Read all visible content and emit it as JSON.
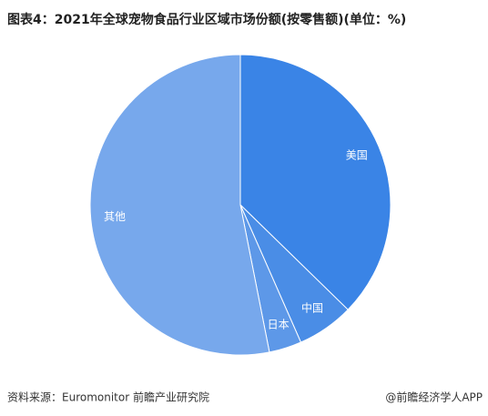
{
  "chart_data": {
    "type": "pie",
    "title": "图表4：2021年全球宠物食品行业区域市场份额(按零售额)(单位：%)",
    "categories": [
      "美国",
      "中国",
      "日本",
      "其他"
    ],
    "values": [
      37.3,
      6.1,
      3.5,
      53.1
    ],
    "colors": [
      "#3a84e6",
      "#4a8de6",
      "#5d98e8",
      "#77a8ec"
    ],
    "source": "资料来源：Euromonitor 前瞻产业研究院",
    "credit": "@前瞻经济学人APP"
  }
}
